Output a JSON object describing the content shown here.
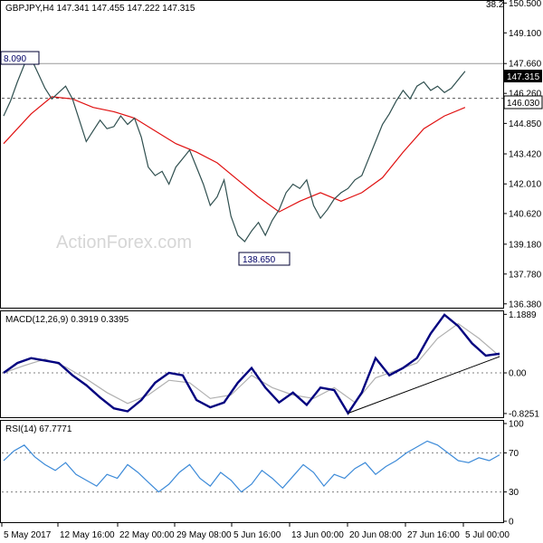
{
  "chart_data": [
    {
      "type": "candlestick",
      "header": "GBPJPY,H4  147.341 147.455 147.222 147.315",
      "watermark": "ActionForex.com",
      "ylim": [
        136.2,
        150.6
      ],
      "yticks": [
        "136.380",
        "137.780",
        "139.180",
        "140.620",
        "142.010",
        "143.420",
        "144.850",
        "146.260",
        "147.660",
        "149.100",
        "150.500"
      ],
      "top_corner_label": "38.2",
      "last_price_tag": "147.315",
      "level_line_label": "146.030",
      "high_label": "8.090",
      "low_label": "138.650",
      "ma_series_name": "",
      "close_points": [
        [
          0,
          145.2
        ],
        [
          2,
          145.9
        ],
        [
          4,
          146.8
        ],
        [
          6,
          147.6
        ],
        [
          8,
          147.9
        ],
        [
          10,
          147.2
        ],
        [
          12,
          146.5
        ],
        [
          14,
          146.0
        ],
        [
          16,
          146.3
        ],
        [
          18,
          146.6
        ],
        [
          20,
          146.0
        ],
        [
          22,
          145.0
        ],
        [
          24,
          144.0
        ],
        [
          26,
          144.5
        ],
        [
          28,
          145.0
        ],
        [
          30,
          144.6
        ],
        [
          32,
          144.7
        ],
        [
          34,
          145.2
        ],
        [
          36,
          144.8
        ],
        [
          38,
          145.1
        ],
        [
          40,
          144.2
        ],
        [
          42,
          142.8
        ],
        [
          44,
          142.4
        ],
        [
          46,
          142.6
        ],
        [
          48,
          142.0
        ],
        [
          50,
          142.8
        ],
        [
          52,
          143.2
        ],
        [
          54,
          143.6
        ],
        [
          56,
          142.8
        ],
        [
          58,
          142.0
        ],
        [
          60,
          141.0
        ],
        [
          62,
          141.4
        ],
        [
          64,
          142.2
        ],
        [
          66,
          140.5
        ],
        [
          68,
          139.6
        ],
        [
          70,
          139.3
        ],
        [
          72,
          139.8
        ],
        [
          74,
          140.2
        ],
        [
          76,
          139.6
        ],
        [
          78,
          140.3
        ],
        [
          80,
          140.8
        ],
        [
          82,
          141.6
        ],
        [
          84,
          142.0
        ],
        [
          86,
          141.8
        ],
        [
          88,
          142.2
        ],
        [
          90,
          141.0
        ],
        [
          92,
          140.4
        ],
        [
          94,
          140.8
        ],
        [
          96,
          141.3
        ],
        [
          98,
          141.6
        ],
        [
          100,
          141.8
        ],
        [
          102,
          142.2
        ],
        [
          104,
          142.4
        ],
        [
          106,
          143.2
        ],
        [
          108,
          144.0
        ],
        [
          110,
          144.8
        ],
        [
          112,
          145.3
        ],
        [
          114,
          145.9
        ],
        [
          116,
          146.4
        ],
        [
          118,
          146.0
        ],
        [
          120,
          146.6
        ],
        [
          122,
          146.8
        ],
        [
          124,
          146.4
        ],
        [
          126,
          146.6
        ],
        [
          128,
          146.3
        ],
        [
          130,
          146.5
        ],
        [
          132,
          146.9
        ],
        [
          134,
          147.3
        ]
      ],
      "ma_points": [
        [
          0,
          143.9
        ],
        [
          8,
          145.3
        ],
        [
          14,
          146.1
        ],
        [
          20,
          146.0
        ],
        [
          26,
          145.6
        ],
        [
          32,
          145.4
        ],
        [
          38,
          145.1
        ],
        [
          44,
          144.5
        ],
        [
          50,
          143.9
        ],
        [
          56,
          143.5
        ],
        [
          62,
          143.0
        ],
        [
          68,
          142.2
        ],
        [
          74,
          141.4
        ],
        [
          80,
          140.7
        ],
        [
          86,
          141.2
        ],
        [
          92,
          141.6
        ],
        [
          98,
          141.2
        ],
        [
          104,
          141.6
        ],
        [
          110,
          142.3
        ],
        [
          116,
          143.5
        ],
        [
          122,
          144.6
        ],
        [
          128,
          145.2
        ],
        [
          134,
          145.6
        ]
      ]
    },
    {
      "type": "line",
      "header": "MACD(12,26,9) 0.3919 0.3395",
      "ylim": [
        -0.9,
        1.25
      ],
      "yticks": [
        "1.1889",
        "0.00",
        "-0.8251"
      ],
      "series": [
        {
          "values": [
            [
              0,
              0.0
            ],
            [
              4,
              0.2
            ],
            [
              8,
              0.3
            ],
            [
              12,
              0.25
            ],
            [
              16,
              0.2
            ],
            [
              20,
              -0.05
            ],
            [
              24,
              -0.25
            ],
            [
              28,
              -0.5
            ],
            [
              32,
              -0.72
            ],
            [
              36,
              -0.78
            ],
            [
              40,
              -0.55
            ],
            [
              44,
              -0.2
            ],
            [
              48,
              0.0
            ],
            [
              52,
              -0.05
            ],
            [
              56,
              -0.55
            ],
            [
              60,
              -0.7
            ],
            [
              64,
              -0.6
            ],
            [
              68,
              -0.2
            ],
            [
              72,
              0.1
            ],
            [
              76,
              -0.3
            ],
            [
              80,
              -0.6
            ],
            [
              84,
              -0.4
            ],
            [
              88,
              -0.65
            ],
            [
              92,
              -0.3
            ],
            [
              96,
              -0.35
            ],
            [
              100,
              -0.82
            ],
            [
              104,
              -0.4
            ],
            [
              108,
              0.3
            ],
            [
              112,
              -0.05
            ],
            [
              116,
              0.1
            ],
            [
              120,
              0.3
            ],
            [
              124,
              0.8
            ],
            [
              128,
              1.18
            ],
            [
              132,
              0.95
            ],
            [
              136,
              0.6
            ],
            [
              140,
              0.35
            ],
            [
              144,
              0.39
            ]
          ]
        },
        {
          "values": [
            [
              0,
              0.0
            ],
            [
              6,
              0.15
            ],
            [
              12,
              0.28
            ],
            [
              18,
              0.12
            ],
            [
              24,
              -0.12
            ],
            [
              30,
              -0.4
            ],
            [
              36,
              -0.62
            ],
            [
              42,
              -0.45
            ],
            [
              48,
              -0.15
            ],
            [
              54,
              -0.2
            ],
            [
              60,
              -0.52
            ],
            [
              66,
              -0.45
            ],
            [
              72,
              -0.05
            ],
            [
              78,
              -0.3
            ],
            [
              84,
              -0.45
            ],
            [
              90,
              -0.52
            ],
            [
              96,
              -0.3
            ],
            [
              102,
              -0.6
            ],
            [
              108,
              -0.1
            ],
            [
              114,
              0.05
            ],
            [
              120,
              0.2
            ],
            [
              126,
              0.7
            ],
            [
              132,
              1.0
            ],
            [
              138,
              0.7
            ],
            [
              144,
              0.34
            ]
          ]
        }
      ],
      "trendline": [
        [
          100,
          -0.82
        ],
        [
          144,
          0.33
        ]
      ]
    },
    {
      "type": "line",
      "header": "RSI(14) 67.7771",
      "ylim": [
        0,
        100
      ],
      "yticks": [
        "100",
        "70",
        "30",
        "0"
      ],
      "levels": [
        70,
        30
      ],
      "series": [
        {
          "values": [
            [
              0,
              62
            ],
            [
              3,
              72
            ],
            [
              6,
              78
            ],
            [
              9,
              66
            ],
            [
              12,
              58
            ],
            [
              15,
              52
            ],
            [
              18,
              60
            ],
            [
              21,
              48
            ],
            [
              24,
              42
            ],
            [
              27,
              36
            ],
            [
              30,
              48
            ],
            [
              33,
              44
            ],
            [
              36,
              58
            ],
            [
              39,
              50
            ],
            [
              42,
              40
            ],
            [
              45,
              30
            ],
            [
              48,
              38
            ],
            [
              51,
              50
            ],
            [
              54,
              58
            ],
            [
              57,
              44
            ],
            [
              60,
              36
            ],
            [
              63,
              50
            ],
            [
              66,
              42
            ],
            [
              69,
              30
            ],
            [
              72,
              38
            ],
            [
              75,
              52
            ],
            [
              78,
              44
            ],
            [
              81,
              34
            ],
            [
              84,
              46
            ],
            [
              87,
              58
            ],
            [
              90,
              50
            ],
            [
              93,
              36
            ],
            [
              96,
              48
            ],
            [
              99,
              44
            ],
            [
              102,
              54
            ],
            [
              105,
              60
            ],
            [
              108,
              48
            ],
            [
              111,
              56
            ],
            [
              114,
              62
            ],
            [
              117,
              70
            ],
            [
              120,
              76
            ],
            [
              123,
              82
            ],
            [
              126,
              78
            ],
            [
              129,
              70
            ],
            [
              132,
              62
            ],
            [
              135,
              60
            ],
            [
              138,
              65
            ],
            [
              141,
              62
            ],
            [
              144,
              68
            ]
          ]
        }
      ]
    }
  ],
  "xaxis_labels": [
    "5 May 2017",
    "12 May 16:00",
    "22 May 00:00",
    "29 May 08:00",
    "5 Jun 16:00",
    "13 Jun 00:00",
    "20 Jun 08:00",
    "27 Jun 16:00",
    "5 Jul 00:00"
  ],
  "colors": {
    "price_line": "#2f4f4f",
    "ma_line": "#e01010",
    "macd_line": "#00007f",
    "signal_line": "#b0b0b0",
    "rsi_line": "#3c8ad8",
    "trendline": "#000000",
    "grid_dots": "#808080"
  }
}
